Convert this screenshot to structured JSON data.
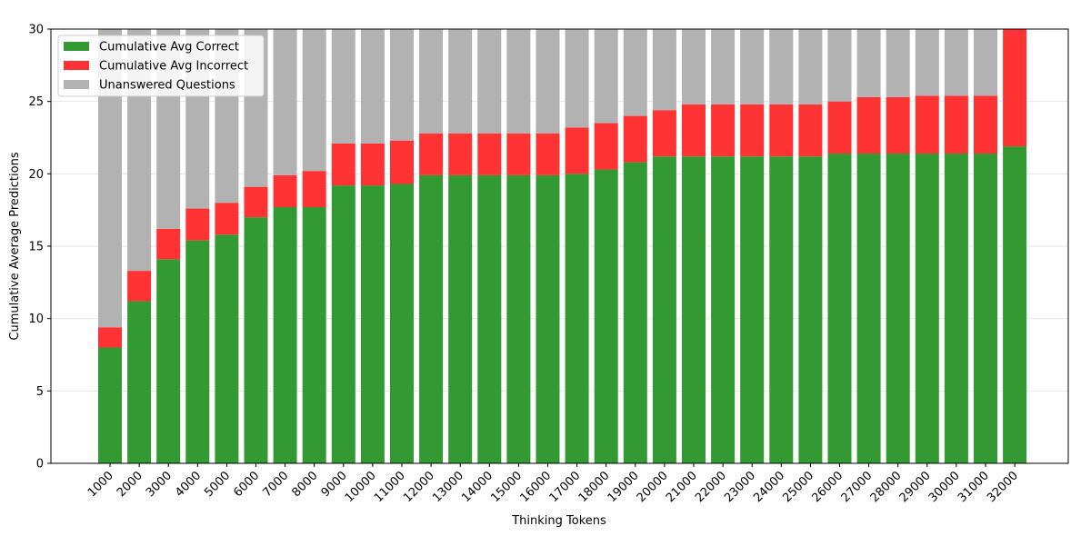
{
  "chart_data": {
    "type": "bar",
    "stacked": true,
    "title": "",
    "xlabel": "Thinking Tokens",
    "ylabel": "Cumulative Average Predictions",
    "ylim": [
      0,
      30
    ],
    "yticks": [
      0,
      5,
      10,
      15,
      20,
      25,
      30
    ],
    "grid": "horizontal",
    "legend_position": "top-left",
    "categories": [
      "1000",
      "2000",
      "3000",
      "4000",
      "5000",
      "6000",
      "7000",
      "8000",
      "9000",
      "10000",
      "11000",
      "12000",
      "13000",
      "14000",
      "15000",
      "16000",
      "17000",
      "18000",
      "19000",
      "20000",
      "21000",
      "22000",
      "23000",
      "24000",
      "25000",
      "26000",
      "27000",
      "28000",
      "29000",
      "30000",
      "31000",
      "32000"
    ],
    "series": [
      {
        "name": "Cumulative Avg Correct",
        "color": "#339933",
        "values": [
          8.0,
          11.2,
          14.1,
          15.4,
          15.8,
          17.0,
          17.7,
          17.7,
          19.2,
          19.2,
          19.3,
          19.9,
          19.9,
          19.9,
          19.9,
          19.9,
          20.0,
          20.3,
          20.8,
          21.2,
          21.2,
          21.2,
          21.2,
          21.2,
          21.2,
          21.4,
          21.4,
          21.4,
          21.4,
          21.4,
          21.4,
          21.9
        ]
      },
      {
        "name": "Cumulative Avg Incorrect",
        "color": "#ff3333",
        "values": [
          1.4,
          2.1,
          2.1,
          2.2,
          2.2,
          2.1,
          2.2,
          2.5,
          2.9,
          2.9,
          3.0,
          2.9,
          2.9,
          2.9,
          2.9,
          2.9,
          3.2,
          3.2,
          3.2,
          3.2,
          3.6,
          3.6,
          3.6,
          3.6,
          3.6,
          3.6,
          3.9,
          3.9,
          4.0,
          4.0,
          4.0,
          8.1
        ]
      },
      {
        "name": "Unanswered Questions",
        "color": "#b2b2b2",
        "values": [
          20.6,
          16.7,
          13.8,
          12.4,
          12.0,
          10.9,
          10.1,
          9.8,
          7.9,
          7.9,
          7.7,
          7.2,
          7.2,
          7.2,
          7.2,
          7.2,
          6.8,
          6.5,
          6.0,
          5.6,
          5.2,
          5.2,
          5.2,
          5.2,
          5.2,
          5.0,
          4.7,
          4.7,
          4.6,
          4.6,
          4.6,
          0.0
        ]
      }
    ]
  }
}
